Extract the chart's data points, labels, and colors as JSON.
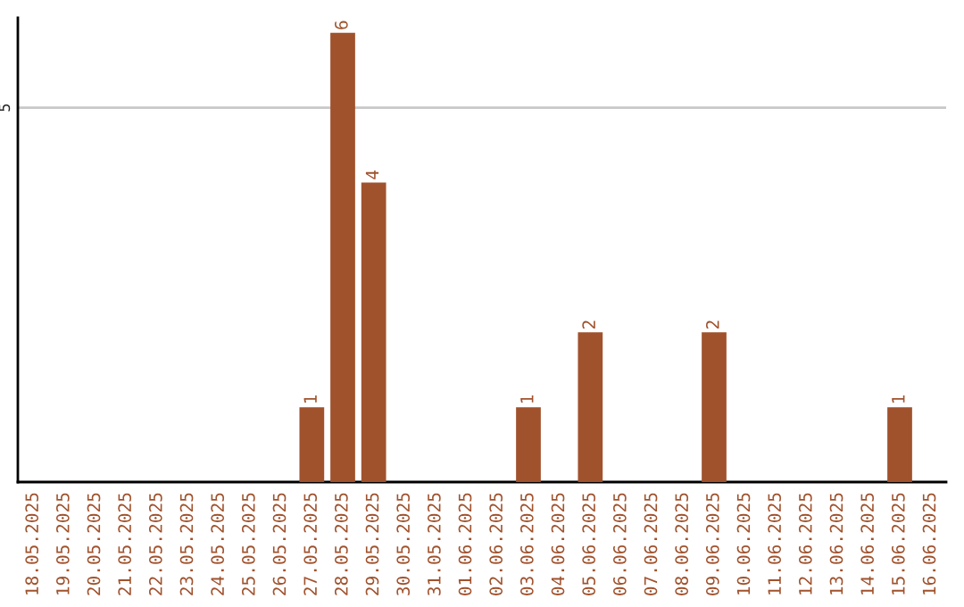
{
  "chart_data": {
    "type": "bar",
    "categories": [
      "18.05.2025",
      "19.05.2025",
      "20.05.2025",
      "21.05.2025",
      "22.05.2025",
      "23.05.2025",
      "24.05.2025",
      "25.05.2025",
      "26.05.2025",
      "27.05.2025",
      "28.05.2025",
      "29.05.2025",
      "30.05.2025",
      "31.05.2025",
      "01.06.2025",
      "02.06.2025",
      "03.06.2025",
      "04.06.2025",
      "05.06.2025",
      "06.06.2025",
      "07.06.2025",
      "08.06.2025",
      "09.06.2025",
      "10.06.2025",
      "11.06.2025",
      "12.06.2025",
      "13.06.2025",
      "14.06.2025",
      "15.06.2025",
      "16.06.2025"
    ],
    "values": [
      0,
      0,
      0,
      0,
      0,
      0,
      0,
      0,
      0,
      1,
      6,
      4,
      0,
      0,
      0,
      0,
      1,
      0,
      2,
      0,
      0,
      0,
      2,
      0,
      0,
      0,
      0,
      0,
      1,
      0
    ],
    "value_labels": [
      null,
      null,
      null,
      null,
      null,
      null,
      null,
      null,
      null,
      "1",
      "6",
      "4",
      null,
      null,
      null,
      null,
      "1",
      null,
      "2",
      null,
      null,
      null,
      "2",
      null,
      null,
      null,
      null,
      null,
      "1",
      null
    ],
    "color": "#a0522d",
    "ylim": [
      0,
      6.2
    ],
    "yticks": [
      5
    ],
    "grid": "y",
    "legend": false
  }
}
